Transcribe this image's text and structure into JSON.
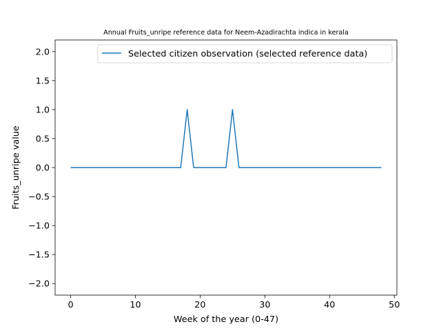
{
  "chart_data": {
    "type": "line",
    "title": "Annual Fruits_unripe reference data for Neem-Azadirachta indica in kerala",
    "xlabel": "Week of the year (0-47)",
    "ylabel": "Fruits_unripe value",
    "xlim": [
      -2.4,
      50.4
    ],
    "ylim": [
      -2.2,
      2.2
    ],
    "xticks": [
      0,
      10,
      20,
      30,
      40,
      50
    ],
    "yticks": [
      -2.0,
      -1.5,
      -1.0,
      -0.5,
      0.0,
      0.5,
      1.0,
      1.5,
      2.0
    ],
    "xtick_labels": [
      "0",
      "10",
      "20",
      "30",
      "40",
      "50"
    ],
    "ytick_labels": [
      "−2.0",
      "−1.5",
      "−1.0",
      "−0.5",
      "0.0",
      "0.5",
      "1.0",
      "1.5",
      "2.0"
    ],
    "grid": false,
    "legend_position": "top-right",
    "series": [
      {
        "name": "Selected citizen observation (selected reference data)",
        "color": "#1f77b4",
        "x": [
          0,
          1,
          2,
          3,
          4,
          5,
          6,
          7,
          8,
          9,
          10,
          11,
          12,
          13,
          14,
          15,
          16,
          17,
          18,
          19,
          20,
          21,
          22,
          23,
          24,
          25,
          26,
          27,
          28,
          29,
          30,
          31,
          32,
          33,
          34,
          35,
          36,
          37,
          38,
          39,
          40,
          41,
          42,
          43,
          44,
          45,
          46,
          47,
          48
        ],
        "y": [
          0,
          0,
          0,
          0,
          0,
          0,
          0,
          0,
          0,
          0,
          0,
          0,
          0,
          0,
          0,
          0,
          0,
          0,
          1,
          0,
          0,
          0,
          0,
          0,
          0,
          1,
          0,
          0,
          0,
          0,
          0,
          0,
          0,
          0,
          0,
          0,
          0,
          0,
          0,
          0,
          0,
          0,
          0,
          0,
          0,
          0,
          0,
          0,
          0
        ]
      }
    ]
  }
}
